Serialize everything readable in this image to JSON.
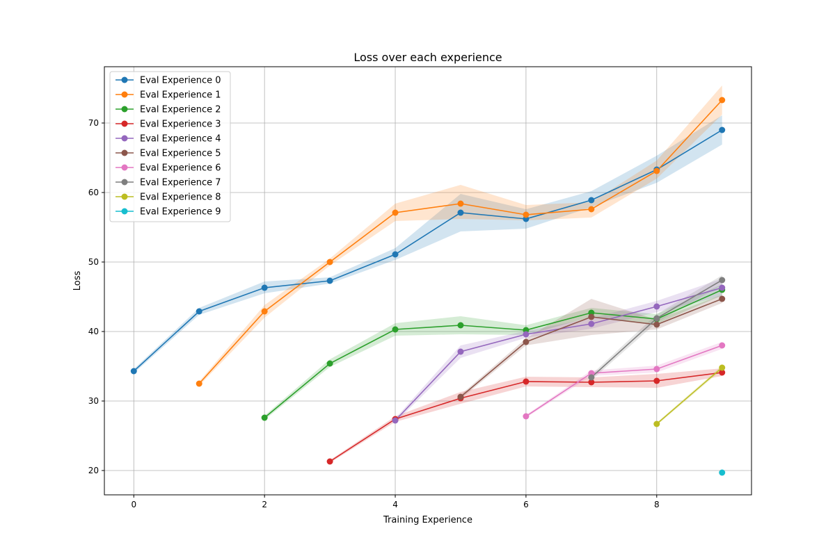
{
  "chart_data": {
    "type": "line",
    "title": "Loss over each experience",
    "xlabel": "Training Experience",
    "ylabel": "Loss",
    "xlim": [
      -0.45,
      9.45
    ],
    "ylim": [
      16.5,
      78.1
    ],
    "xticks": [
      0,
      2,
      4,
      6,
      8
    ],
    "yticks": [
      20,
      30,
      40,
      50,
      60,
      70
    ],
    "grid": true,
    "legend_position": "top-left",
    "series": [
      {
        "name": "Eval Experience 0",
        "color": "#1f77b4",
        "x": [
          0,
          1,
          2,
          3,
          4,
          5,
          6,
          7,
          8,
          9
        ],
        "y": [
          34.3,
          42.9,
          46.3,
          47.3,
          51.1,
          57.1,
          56.2,
          58.9,
          63.3,
          69.0
        ],
        "lower": [
          34.0,
          42.4,
          45.5,
          46.9,
          50.3,
          54.4,
          54.8,
          57.9,
          61.4,
          66.9
        ],
        "upper": [
          34.6,
          43.4,
          47.2,
          47.8,
          52.0,
          59.8,
          57.6,
          60.2,
          65.3,
          71.1
        ]
      },
      {
        "name": "Eval Experience 1",
        "color": "#ff7f0e",
        "x": [
          1,
          2,
          3,
          4,
          5,
          6,
          7,
          8,
          9
        ],
        "y": [
          32.5,
          42.9,
          50.0,
          57.1,
          58.4,
          56.8,
          57.6,
          63.1,
          73.3
        ],
        "lower": [
          32.2,
          42.0,
          49.5,
          55.9,
          56.2,
          56.0,
          56.4,
          62.0,
          71.2
        ],
        "upper": [
          32.8,
          43.8,
          50.5,
          58.4,
          61.1,
          58.2,
          58.6,
          64.6,
          75.4
        ]
      },
      {
        "name": "Eval Experience 2",
        "color": "#2ca02c",
        "x": [
          2,
          3,
          4,
          5,
          6,
          7,
          8,
          9
        ],
        "y": [
          27.6,
          35.4,
          40.3,
          40.9,
          40.2,
          42.7,
          41.8,
          46.0
        ],
        "lower": [
          27.3,
          34.9,
          39.4,
          39.6,
          39.5,
          42.1,
          41.1,
          45.2
        ],
        "upper": [
          27.9,
          36.0,
          41.2,
          42.2,
          40.9,
          43.4,
          42.5,
          46.8
        ]
      },
      {
        "name": "Eval Experience 3",
        "color": "#d62728",
        "x": [
          3,
          4,
          5,
          6,
          7,
          8,
          9
        ],
        "y": [
          21.3,
          27.4,
          30.4,
          32.8,
          32.7,
          32.9,
          34.1
        ],
        "lower": [
          21.1,
          27.0,
          29.6,
          32.1,
          32.0,
          31.9,
          33.6
        ],
        "upper": [
          21.5,
          27.8,
          31.3,
          33.5,
          33.4,
          33.9,
          34.7
        ]
      },
      {
        "name": "Eval Experience 4",
        "color": "#9467bd",
        "x": [
          4,
          5,
          6,
          7,
          8,
          9
        ],
        "y": [
          27.2,
          37.1,
          39.6,
          41.1,
          43.6,
          46.3
        ],
        "lower": [
          26.9,
          36.2,
          39.1,
          40.4,
          42.8,
          45.1
        ],
        "upper": [
          27.5,
          38.0,
          40.1,
          41.9,
          44.4,
          47.6
        ]
      },
      {
        "name": "Eval Experience 5",
        "color": "#8c564b",
        "x": [
          5,
          6,
          7,
          8,
          9
        ],
        "y": [
          30.6,
          38.5,
          42.1,
          41.0,
          44.7
        ],
        "lower": [
          30.3,
          38.0,
          39.5,
          40.3,
          44.1
        ],
        "upper": [
          30.9,
          39.0,
          44.7,
          41.7,
          45.3
        ]
      },
      {
        "name": "Eval Experience 6",
        "color": "#e377c2",
        "x": [
          6,
          7,
          8,
          9
        ],
        "y": [
          27.8,
          34.0,
          34.6,
          38.0
        ],
        "lower": [
          27.6,
          33.6,
          34.1,
          37.5
        ],
        "upper": [
          28.0,
          34.4,
          35.1,
          38.5
        ]
      },
      {
        "name": "Eval Experience 7",
        "color": "#7f7f7f",
        "x": [
          7,
          8,
          9
        ],
        "y": [
          33.4,
          41.9,
          47.4
        ],
        "lower": [
          33.0,
          41.3,
          46.7
        ],
        "upper": [
          33.8,
          42.5,
          48.1
        ]
      },
      {
        "name": "Eval Experience 8",
        "color": "#bcbd22",
        "x": [
          8,
          9
        ],
        "y": [
          26.7,
          34.8
        ],
        "lower": [
          26.5,
          34.5
        ],
        "upper": [
          26.9,
          35.1
        ]
      },
      {
        "name": "Eval Experience 9",
        "color": "#17becf",
        "x": [
          9
        ],
        "y": [
          19.7
        ],
        "lower": [
          19.6
        ],
        "upper": [
          19.8
        ]
      }
    ]
  }
}
